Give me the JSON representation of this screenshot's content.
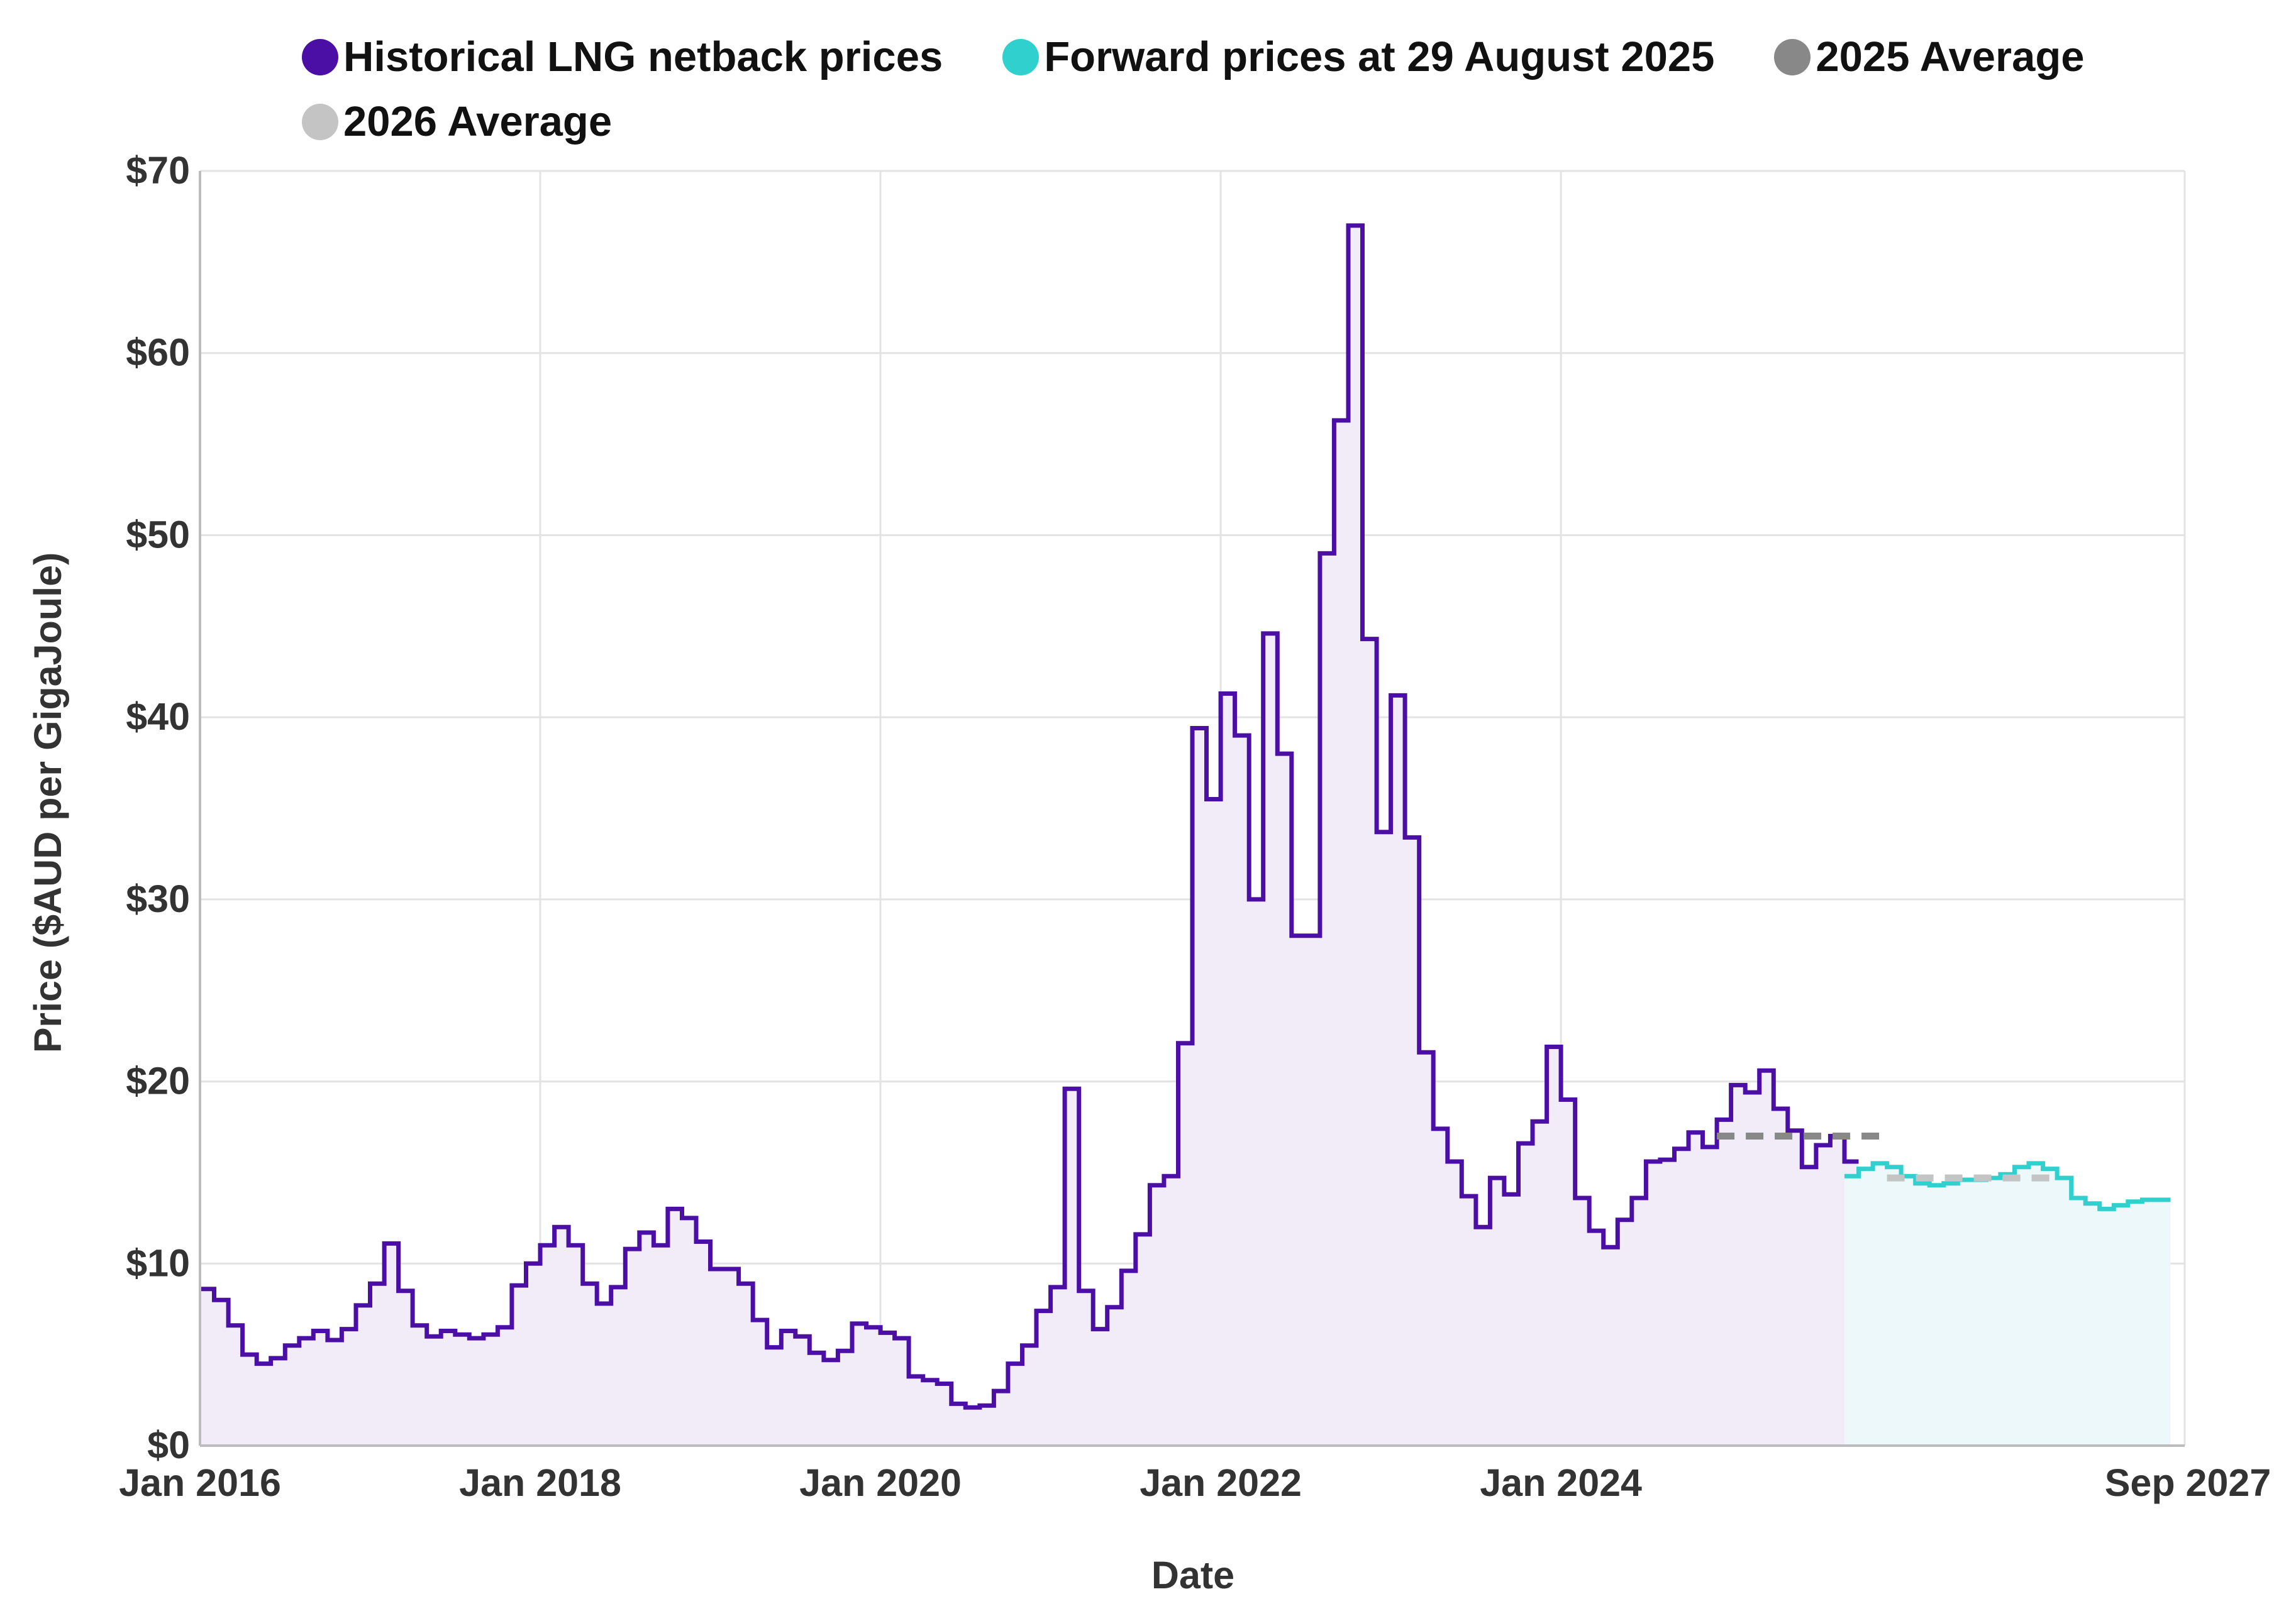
{
  "chart_data": {
    "type": "line",
    "step": true,
    "title": "",
    "xlabel": "Date",
    "ylabel": "Price ($AUD per GigaJoule)",
    "ylim": [
      0,
      70
    ],
    "xlim": [
      "2016-01",
      "2027-09"
    ],
    "y_ticks": [
      {
        "value": 0,
        "label": "$0"
      },
      {
        "value": 10,
        "label": "$10"
      },
      {
        "value": 20,
        "label": "$20"
      },
      {
        "value": 30,
        "label": "$30"
      },
      {
        "value": 40,
        "label": "$40"
      },
      {
        "value": 50,
        "label": "$50"
      },
      {
        "value": 60,
        "label": "$60"
      },
      {
        "value": 70,
        "label": "$70"
      }
    ],
    "x_ticks": [
      {
        "date": "2016-01",
        "label": "Jan 2016"
      },
      {
        "date": "2018-01",
        "label": "Jan 2018"
      },
      {
        "date": "2020-01",
        "label": "Jan 2020"
      },
      {
        "date": "2022-01",
        "label": "Jan 2022"
      },
      {
        "date": "2024-01",
        "label": "Jan 2024"
      },
      {
        "date": "2027-09",
        "label": "Sep 2027"
      }
    ],
    "grid": true,
    "legend_position": "top",
    "series": [
      {
        "name": "Historical LNG netback prices",
        "color": "#4b0fa6",
        "fill": "#f1ecf8",
        "start": "2016-01",
        "values": [
          8.6,
          8.0,
          6.6,
          5.0,
          4.5,
          4.8,
          5.5,
          5.9,
          6.3,
          5.8,
          6.4,
          7.7,
          8.9,
          11.1,
          8.5,
          6.6,
          6.0,
          6.3,
          6.1,
          5.9,
          6.1,
          6.5,
          8.8,
          10.0,
          11.0,
          12.0,
          11.0,
          8.9,
          7.8,
          8.7,
          10.8,
          11.7,
          11.0,
          13.0,
          12.5,
          11.2,
          9.7,
          9.7,
          8.9,
          6.9,
          5.4,
          6.3,
          6.0,
          5.1,
          4.7,
          5.2,
          6.7,
          6.5,
          6.2,
          5.9,
          3.8,
          3.6,
          3.4,
          2.3,
          2.1,
          2.2,
          3.0,
          4.5,
          5.5,
          7.4,
          8.7,
          19.6,
          8.5,
          6.4,
          7.6,
          9.6,
          11.6,
          14.3,
          14.8,
          22.1,
          39.4,
          35.5,
          41.3,
          39.0,
          30.0,
          44.6,
          38.0,
          28.0,
          28.0,
          49.0,
          56.3,
          67.0,
          44.3,
          33.7,
          41.2,
          33.4,
          21.6,
          17.4,
          15.6,
          13.7,
          12.0,
          14.7,
          13.8,
          16.6,
          17.8,
          21.9,
          19.0,
          13.6,
          11.8,
          10.9,
          12.4,
          13.6,
          15.6,
          15.7,
          16.3,
          17.2,
          16.4,
          17.9,
          19.8,
          19.4,
          20.6,
          18.5,
          17.3,
          15.3,
          16.5,
          17.0,
          15.6
        ]
      },
      {
        "name": "Forward prices at 29 August 2025",
        "color": "#2fd0cd",
        "fill": "#ecf8f9",
        "start": "2025-09",
        "values": [
          14.8,
          15.2,
          15.5,
          15.3,
          14.8,
          14.4,
          14.3,
          14.4,
          14.6,
          14.6,
          14.7,
          14.9,
          15.3,
          15.5,
          15.2,
          14.7,
          13.6,
          13.3,
          13.0,
          13.2,
          13.4,
          13.5,
          13.5
        ]
      },
      {
        "name": "2025 Average",
        "color": "#888888",
        "from": "2024-12",
        "to": "2025-12",
        "value": 17.0
      },
      {
        "name": "2026 Average",
        "color": "#c4c4c4",
        "from": "2025-12",
        "to": "2026-12",
        "value": 14.7
      }
    ]
  }
}
